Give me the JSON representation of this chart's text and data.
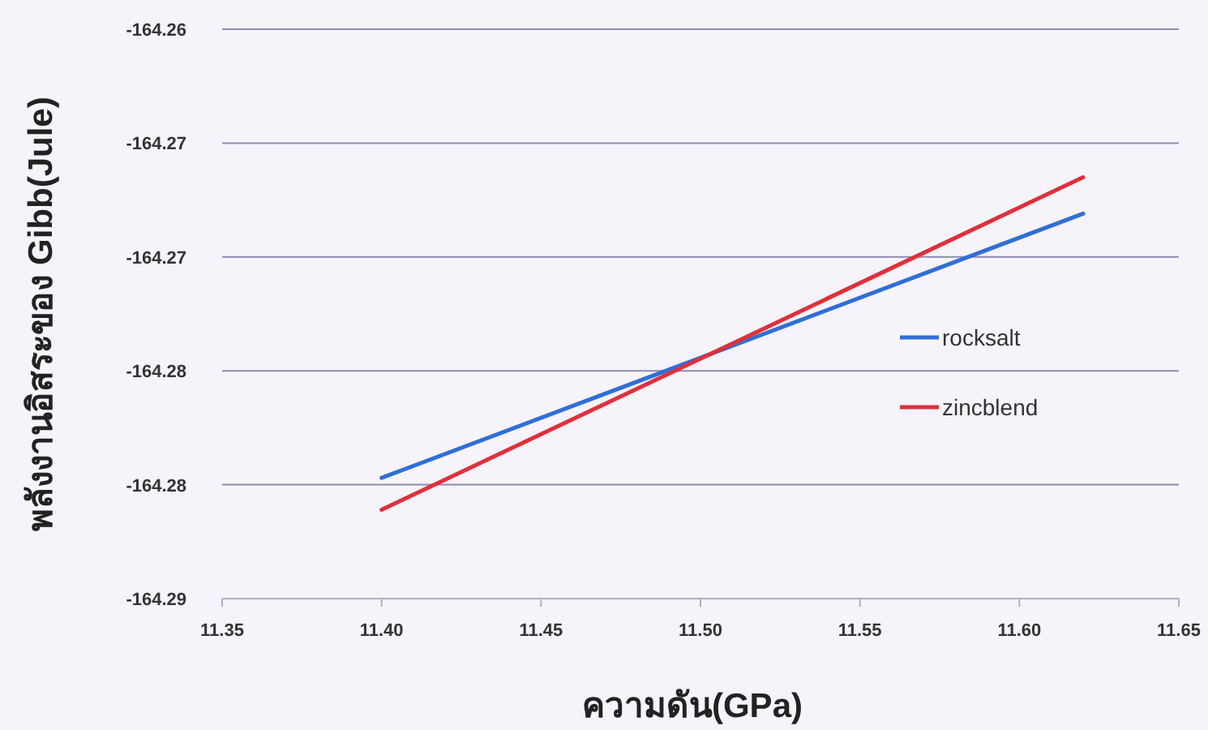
{
  "chart_data": {
    "type": "line",
    "xlabel": "ความดัน(GPa)",
    "ylabel": "พลังงานอิสระของ Gibb(Jule)",
    "xlim": [
      11.35,
      11.65
    ],
    "xticks": [
      {
        "value": 11.35,
        "label": "11.35"
      },
      {
        "value": 11.4,
        "label": "11.40"
      },
      {
        "value": 11.45,
        "label": "11.45"
      },
      {
        "value": 11.5,
        "label": "11.50"
      },
      {
        "value": 11.55,
        "label": "11.55"
      },
      {
        "value": 11.6,
        "label": "11.60"
      },
      {
        "value": 11.65,
        "label": "11.65"
      }
    ],
    "ylim": [
      -164.285,
      -164.26
    ],
    "yticks": [
      {
        "value": -164.26,
        "label": "-164.26"
      },
      {
        "value": -164.265,
        "label": "-164.27"
      },
      {
        "value": -164.27,
        "label": "-164.27"
      },
      {
        "value": -164.275,
        "label": "-164.28"
      },
      {
        "value": -164.28,
        "label": "-164.28"
      },
      {
        "value": -164.285,
        "label": "-164.29"
      }
    ],
    "x": [
      11.4,
      11.62
    ],
    "grid": "y",
    "legend": "right",
    "marker": "none",
    "line_style": "solid",
    "series": [
      {
        "name": "rocksalt",
        "color": "#2f6fd6",
        "values": [
          -164.2797,
          -164.2681
        ]
      },
      {
        "name": "zincblend",
        "color": "#e0303a",
        "values": [
          -164.2811,
          -164.2665
        ]
      }
    ]
  }
}
